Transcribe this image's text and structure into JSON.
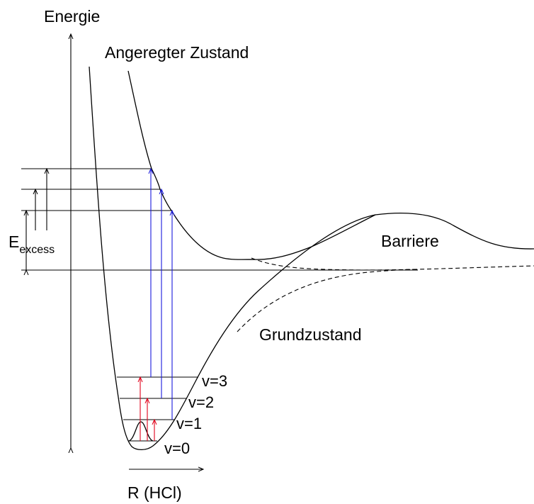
{
  "labels": {
    "energy_axis": "Energie",
    "excited_state": "Angeregter Zustand",
    "barrier": "Barriere",
    "ground_state": "Grundzustand",
    "excess_main": "E",
    "excess_sub": "excess",
    "r_axis": "R (HCl)"
  },
  "vibrational_levels": [
    {
      "label": "v=0"
    },
    {
      "label": "v=1"
    },
    {
      "label": "v=2"
    },
    {
      "label": "v=3"
    }
  ],
  "colors": {
    "ir_excitation": "#e0001a",
    "uv_excitation": "#1a1adc",
    "curves": "#000000"
  }
}
